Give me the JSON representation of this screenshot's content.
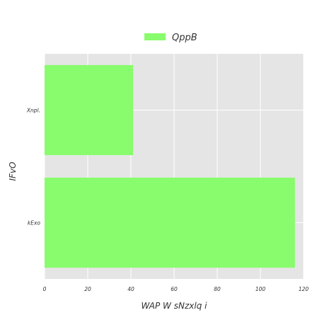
{
  "chart_data": {
    "type": "bar",
    "orientation": "horizontal",
    "categories": [
      "Xnpl.",
      "kExo"
    ],
    "series": [
      {
        "name": "QppB",
        "color": "#88fc6c",
        "values": [
          41,
          116
        ]
      }
    ],
    "xlabel": "WAP W sNzxlq i",
    "ylabel": "IFvO",
    "xlim": [
      0,
      120
    ],
    "xticks": [
      0,
      20,
      40,
      60,
      80,
      100,
      120
    ],
    "grid": true,
    "legend_position": "top-center",
    "background_color": "#e5e5e5",
    "grid_color": "#ffffff"
  }
}
